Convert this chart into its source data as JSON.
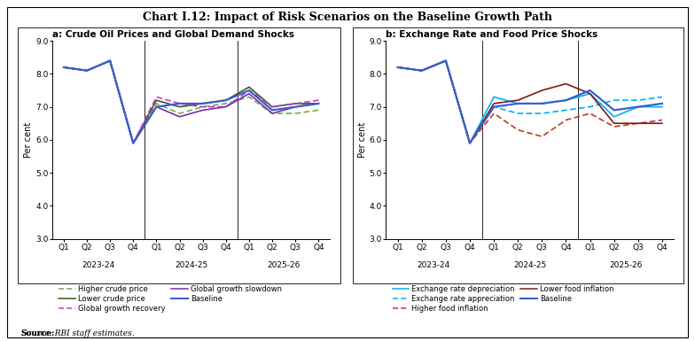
{
  "title": "Chart I.12: Impact of Risk Scenarios on the Baseline Growth Path",
  "subtitle_a": "a: Crude Oil Prices and Global Demand Shocks",
  "subtitle_b": "b: Exchange Rate and Food Price Shocks",
  "xlabel_years": [
    "2023-24",
    "2024-25",
    "2025-26"
  ],
  "xtick_labels": [
    "Q1",
    "Q2",
    "Q3",
    "Q4",
    "Q1",
    "Q2",
    "Q3",
    "Q4",
    "Q1",
    "Q2",
    "Q3",
    "Q4"
  ],
  "ylabel": "Per cent",
  "ylim": [
    3.0,
    9.0
  ],
  "yticks": [
    3.0,
    4.0,
    5.0,
    6.0,
    7.0,
    8.0,
    9.0
  ],
  "source": "Source: RBI staff estimates.",
  "baseline": [
    8.2,
    8.1,
    8.4,
    5.9,
    7.0,
    7.1,
    7.1,
    7.2,
    7.5,
    6.9,
    7.0,
    7.1
  ],
  "higher_crude": [
    8.2,
    8.1,
    8.4,
    5.9,
    7.1,
    6.8,
    7.0,
    7.1,
    7.3,
    6.8,
    6.8,
    6.9
  ],
  "lower_crude": [
    8.2,
    8.1,
    8.4,
    5.9,
    7.2,
    7.0,
    7.1,
    7.2,
    7.6,
    7.0,
    7.1,
    7.1
  ],
  "global_recovery": [
    8.2,
    8.1,
    8.4,
    5.9,
    7.3,
    7.1,
    7.0,
    7.0,
    7.5,
    7.0,
    7.1,
    7.2
  ],
  "global_slowdown": [
    8.2,
    8.1,
    8.4,
    5.9,
    7.0,
    6.7,
    6.9,
    7.0,
    7.4,
    6.8,
    7.0,
    7.1
  ],
  "exch_depreciation": [
    8.2,
    8.1,
    8.4,
    5.9,
    7.3,
    7.1,
    7.1,
    7.2,
    7.4,
    6.7,
    7.0,
    7.0
  ],
  "exch_appreciation": [
    8.2,
    8.1,
    8.4,
    5.9,
    7.0,
    6.8,
    6.8,
    6.9,
    7.0,
    7.2,
    7.2,
    7.3
  ],
  "higher_food": [
    8.2,
    8.1,
    8.4,
    5.9,
    6.8,
    6.3,
    6.1,
    6.6,
    6.8,
    6.4,
    6.5,
    6.6
  ],
  "lower_food": [
    8.2,
    8.1,
    8.4,
    5.9,
    7.1,
    7.2,
    7.5,
    7.7,
    7.4,
    6.5,
    6.5,
    6.5
  ],
  "color_baseline": "#3a5fcd",
  "color_higher_crude": "#70ad47",
  "color_lower_crude": "#375623",
  "color_global_recovery": "#cc33cc",
  "color_global_slowdown": "#7b2fa8",
  "color_exch_depreciation": "#00b0f0",
  "color_exch_appreciation": "#00b0f0",
  "color_higher_food": "#c0392b",
  "color_lower_food": "#7b1a1a"
}
